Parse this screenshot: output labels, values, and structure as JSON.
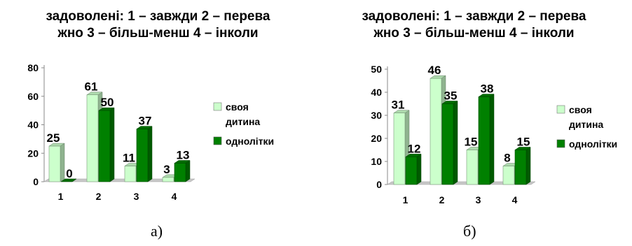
{
  "chart_data": [
    {
      "type": "bar",
      "title_line1": "задоволені: 1 – завжди  2 – перева",
      "title_line2": "жно 3 – більш-менш  4 – інколи",
      "categories": [
        "1",
        "2",
        "3",
        "4"
      ],
      "series": [
        {
          "name": "своя дитина",
          "values": [
            25,
            61,
            11,
            3
          ],
          "color": "#ccffcc"
        },
        {
          "name": "однолітки",
          "values": [
            0,
            50,
            37,
            13
          ],
          "color": "#008000"
        }
      ],
      "ylim": [
        0,
        80
      ],
      "yticks": [
        0,
        20,
        40,
        60,
        80
      ],
      "legend": [
        "своя",
        "дитина",
        "однолітки"
      ],
      "legend_position": "right",
      "grid": false,
      "caption": "а)"
    },
    {
      "type": "bar",
      "title_line1": "задоволені: 1 – завжди  2 – перева",
      "title_line2": "жно 3 – більш-менш  4 – інколи",
      "categories": [
        "1",
        "2",
        "3",
        "4"
      ],
      "series": [
        {
          "name": "своя дитина",
          "values": [
            31,
            46,
            15,
            8
          ],
          "color": "#ccffcc"
        },
        {
          "name": "однолітки",
          "values": [
            12,
            35,
            38,
            15
          ],
          "color": "#008000"
        }
      ],
      "ylim": [
        0,
        50
      ],
      "yticks": [
        0,
        10,
        20,
        30,
        40,
        50
      ],
      "legend": [
        "своя",
        "дитина",
        "однолітки"
      ],
      "legend_position": "right",
      "grid": false,
      "caption": "б)"
    }
  ]
}
